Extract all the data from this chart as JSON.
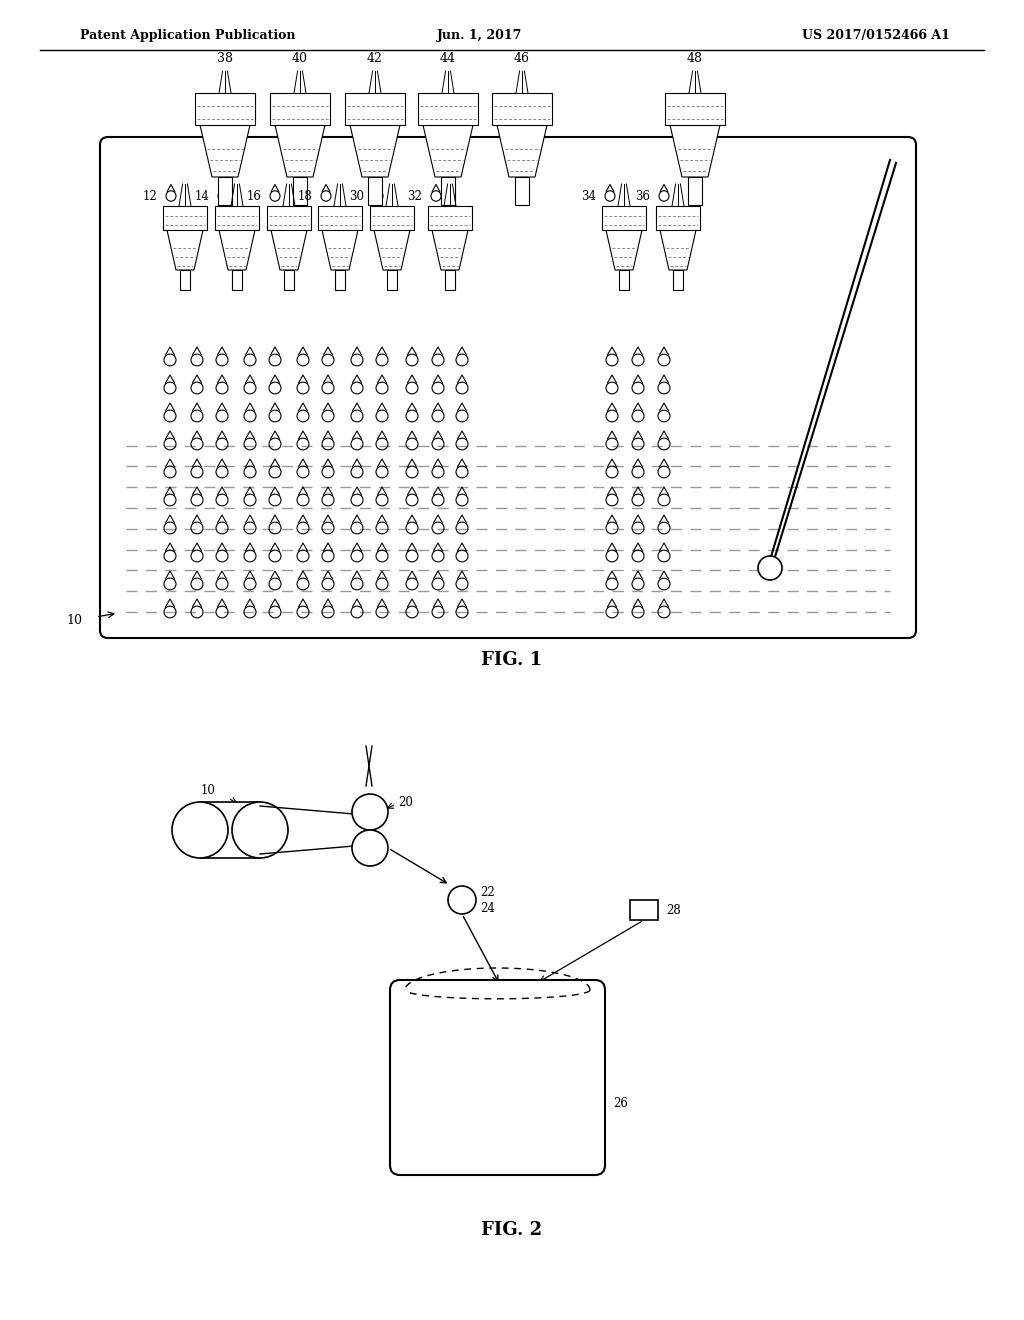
{
  "header_left": "Patent Application Publication",
  "header_center": "Jun. 1, 2017",
  "header_right": "US 2017/0152466 A1",
  "fig1_label": "FIG. 1",
  "fig2_label": "FIG. 2",
  "background": "#ffffff",
  "line_color": "#000000",
  "dashed_color": "#aaaaaa",
  "top_labels": [
    "38",
    "40",
    "42",
    "44",
    "46",
    "48"
  ],
  "mid_labels": [
    "12",
    "14",
    "16",
    "18",
    "30",
    "32",
    "34",
    "36"
  ]
}
